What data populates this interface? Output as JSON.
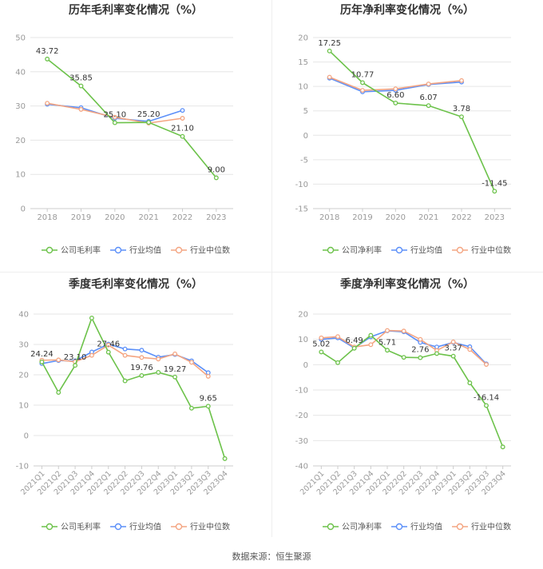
{
  "source_label": "数据来源：恒生聚源",
  "colors": {
    "company": "#6cc24a",
    "avg": "#5b8ff9",
    "median": "#f4a582",
    "grid": "#e6e6e6",
    "axis": "#999999",
    "title": "#333333",
    "label": "#333333"
  },
  "legend_icon": "legend-line-marker",
  "chart_data": [
    {
      "id": "annual-gross",
      "type": "line",
      "title": "历年毛利率变化情况（%）",
      "categories": [
        "2018",
        "2019",
        "2020",
        "2021",
        "2022",
        "2023"
      ],
      "ylim": [
        0,
        50
      ],
      "yticks": [
        0,
        10,
        20,
        30,
        40,
        50
      ],
      "grid": true,
      "legend_position": "bottom",
      "series": [
        {
          "name": "公司毛利率",
          "key": "company",
          "values": [
            43.72,
            35.85,
            25.1,
            25.2,
            21.1,
            9.0
          ]
        },
        {
          "name": "行业均值",
          "key": "avg",
          "values": [
            30.5,
            29.5,
            26.4,
            25.5,
            28.7,
            null
          ]
        },
        {
          "name": "行业中位数",
          "key": "median",
          "values": [
            30.8,
            29.0,
            26.7,
            25.0,
            26.4,
            null
          ]
        }
      ],
      "data_labels": [
        {
          "i": 0,
          "text": "43.72"
        },
        {
          "i": 1,
          "text": "35.85"
        },
        {
          "i": 2,
          "text": "25.10"
        },
        {
          "i": 3,
          "text": "25.20"
        },
        {
          "i": 4,
          "text": "21.10"
        },
        {
          "i": 5,
          "text": "9.00"
        }
      ]
    },
    {
      "id": "annual-net",
      "type": "line",
      "title": "历年净利率变化情况（%）",
      "categories": [
        "2018",
        "2019",
        "2020",
        "2021",
        "2022",
        "2023"
      ],
      "ylim": [
        -15,
        20
      ],
      "yticks": [
        -15,
        -10,
        -5,
        0,
        5,
        10,
        15,
        20
      ],
      "grid": true,
      "legend_position": "bottom",
      "series": [
        {
          "name": "公司净利率",
          "key": "company",
          "values": [
            17.25,
            10.77,
            6.6,
            6.07,
            3.78,
            -11.45
          ]
        },
        {
          "name": "行业均值",
          "key": "avg",
          "values": [
            11.7,
            8.9,
            9.2,
            10.4,
            10.9,
            null
          ]
        },
        {
          "name": "行业中位数",
          "key": "median",
          "values": [
            11.9,
            9.2,
            9.5,
            10.5,
            11.2,
            null
          ]
        }
      ],
      "data_labels": [
        {
          "i": 0,
          "text": "17.25"
        },
        {
          "i": 1,
          "text": "10.77"
        },
        {
          "i": 2,
          "text": "6.60"
        },
        {
          "i": 3,
          "text": "6.07"
        },
        {
          "i": 4,
          "text": "3.78"
        },
        {
          "i": 5,
          "text": "-11.45"
        }
      ]
    },
    {
      "id": "quarterly-gross",
      "type": "line",
      "title": "季度毛利率变化情况（%）",
      "categories": [
        "2021Q1",
        "2021Q2",
        "2021Q3",
        "2021Q4",
        "2022Q1",
        "2022Q2",
        "2022Q3",
        "2022Q4",
        "2023Q1",
        "2023Q2",
        "2023Q3",
        "2023Q4"
      ],
      "ylim": [
        -10,
        40
      ],
      "yticks": [
        -10,
        0,
        10,
        20,
        30,
        40
      ],
      "grid": true,
      "legend_position": "bottom",
      "series": [
        {
          "name": "公司毛利率",
          "key": "company",
          "values": [
            24.24,
            14.2,
            23.1,
            38.7,
            27.46,
            18.0,
            19.76,
            20.8,
            19.27,
            9.0,
            9.65,
            -7.6
          ]
        },
        {
          "name": "行业均值",
          "key": "avg",
          "values": [
            23.7,
            24.7,
            24.6,
            27.5,
            30.1,
            28.5,
            28.1,
            25.8,
            26.7,
            24.6,
            20.7,
            null
          ]
        },
        {
          "name": "行业中位数",
          "key": "median",
          "values": [
            24.8,
            24.9,
            24.3,
            26.4,
            29.8,
            26.4,
            25.7,
            25.2,
            26.9,
            24.1,
            19.5,
            null
          ]
        }
      ],
      "data_labels": [
        {
          "i": 0,
          "text": "24.24"
        },
        {
          "i": 2,
          "text": "23.10"
        },
        {
          "i": 4,
          "text": "27.46"
        },
        {
          "i": 6,
          "text": "19.76"
        },
        {
          "i": 8,
          "text": "19.27"
        },
        {
          "i": 10,
          "text": "9.65"
        }
      ]
    },
    {
      "id": "quarterly-net",
      "type": "line",
      "title": "季度净利率变化情况（%）",
      "categories": [
        "2021Q1",
        "2021Q2",
        "2021Q3",
        "2021Q4",
        "2022Q1",
        "2022Q2",
        "2022Q3",
        "2022Q4",
        "2023Q1",
        "2023Q2",
        "2023Q3",
        "2023Q4"
      ],
      "ylim": [
        -40,
        20
      ],
      "yticks": [
        -40,
        -30,
        -20,
        -10,
        0,
        10,
        20
      ],
      "grid": true,
      "legend_position": "bottom",
      "series": [
        {
          "name": "公司净利率",
          "key": "company",
          "values": [
            5.02,
            0.8,
            6.49,
            11.6,
            5.71,
            2.9,
            2.76,
            4.4,
            3.37,
            -7.2,
            -16.14,
            -32.5
          ]
        },
        {
          "name": "行业均值",
          "key": "avg",
          "values": [
            10.0,
            10.6,
            6.6,
            11.0,
            13.4,
            13.0,
            8.8,
            7.0,
            8.8,
            7.1,
            0.3,
            null
          ]
        },
        {
          "name": "行业中位数",
          "key": "median",
          "values": [
            10.6,
            11.1,
            7.0,
            7.9,
            13.5,
            13.3,
            10.0,
            5.6,
            9.0,
            6.0,
            0.1,
            null
          ]
        }
      ],
      "data_labels": [
        {
          "i": 0,
          "text": "5.02"
        },
        {
          "i": 2,
          "text": "6.49"
        },
        {
          "i": 4,
          "text": "5.71"
        },
        {
          "i": 6,
          "text": "2.76"
        },
        {
          "i": 8,
          "text": "3.37"
        },
        {
          "i": 10,
          "text": "-16.14"
        }
      ]
    }
  ]
}
